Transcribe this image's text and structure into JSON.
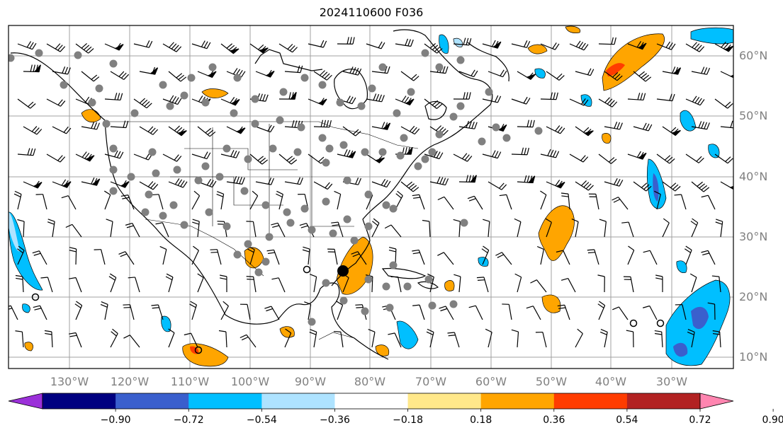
{
  "title": "2024110600 F036",
  "lon_labels": [
    "130°W",
    "120°W",
    "110°W",
    "100°W",
    "90°W",
    "80°W",
    "70°W",
    "60°W",
    "50°W",
    "40°W",
    "30°W"
  ],
  "lat_labels": [
    "60°N",
    "50°N",
    "40°N",
    "30°N",
    "20°N",
    "10°N"
  ],
  "colorbar": {
    "ticks": [
      "−0.90",
      "−0.72",
      "−0.54",
      "−0.36",
      "−0.18",
      "0.18",
      "0.36",
      "0.54",
      "0.72",
      "0.90"
    ],
    "colors": [
      "#9b30d9",
      "#000080",
      "#3a5fcd",
      "#00bfff",
      "#aee3ff",
      "#ffffff",
      "#ffe88a",
      "#ffa500",
      "#ff3c00",
      "#b22222",
      "#ff85b0"
    ]
  },
  "colors": {
    "positive_mid": "#ffa500",
    "positive_high": "#ff3c00",
    "negative_light": "#aee3ff",
    "negative_mid": "#00bfff",
    "negative_strong": "#3a5fcd",
    "station_dot": "#808080",
    "storm_marker": "#000000"
  }
}
